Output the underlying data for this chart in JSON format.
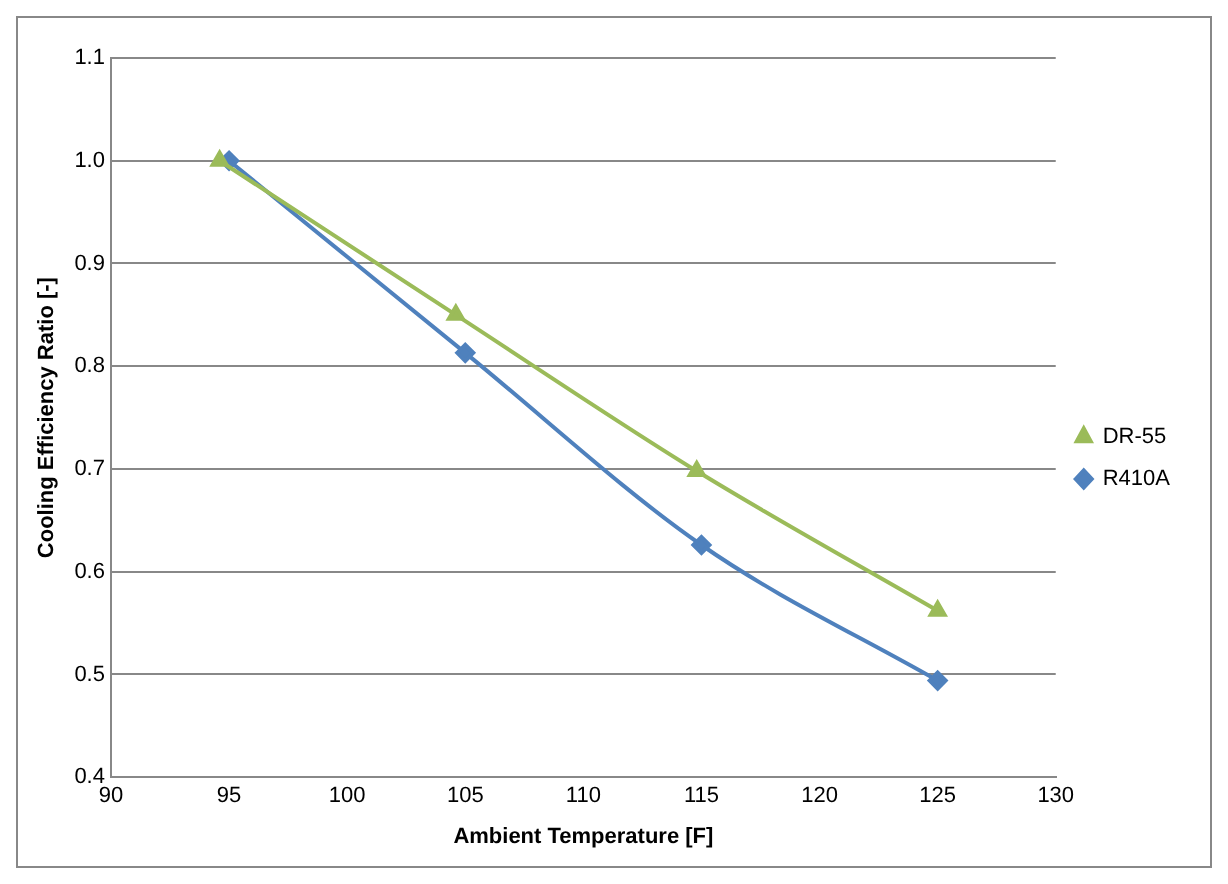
{
  "chart_data": {
    "type": "line",
    "xlabel": "Ambient Temperature [F]",
    "ylabel": "Cooling Efficiency Ratio [-]",
    "xlim": [
      90,
      130
    ],
    "xticks": [
      90,
      95,
      100,
      105,
      110,
      115,
      120,
      125,
      130
    ],
    "ylim": [
      0.4,
      1.1
    ],
    "yticks": [
      0.4,
      0.5,
      0.6,
      0.7,
      0.8,
      0.9,
      {
        "value": 1,
        "label": "1.0"
      },
      1.1
    ],
    "grid": "y",
    "legend": "right",
    "series": [
      {
        "name": "DR-55",
        "color": "#9bbb59",
        "marker": "triangle",
        "x": [
          94.6,
          104.6,
          114.8,
          125
        ],
        "values": [
          1.0,
          0.85,
          0.698,
          0.562
        ]
      },
      {
        "name": "R410A",
        "color": "#4f81bd",
        "marker": "diamond",
        "x": [
          95,
          105,
          115,
          125
        ],
        "values": [
          1.0,
          0.813,
          0.626,
          0.494
        ]
      }
    ]
  }
}
